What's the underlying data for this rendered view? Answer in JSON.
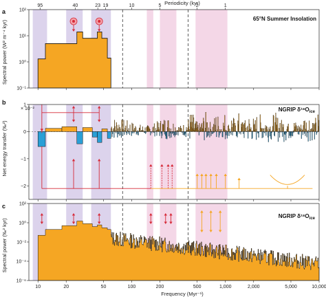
{
  "chart_data": {
    "type": "area",
    "x_axis": {
      "label": "Frequency (Myr⁻¹)",
      "scale": "log",
      "range": [
        8,
        10000
      ],
      "tick_labels": [
        "10",
        "20",
        "50",
        "100",
        "200",
        "500",
        "1,000",
        "2,000",
        "5,000",
        "10,000"
      ],
      "tick_values": [
        10,
        20,
        50,
        100,
        200,
        500,
        1000,
        2000,
        5000,
        10000
      ]
    },
    "top_axis": {
      "label": "Periodicity (kyr)",
      "tick_labels": [
        "95",
        "40",
        "23",
        "19",
        "10",
        "5",
        "2",
        "1"
      ],
      "tick_values": [
        95,
        40,
        23,
        19,
        10,
        5,
        2,
        1
      ]
    },
    "highlight_bands": [
      {
        "from": 8.8,
        "to": 12.5,
        "color": "#dcd3ec"
      },
      {
        "from": 20,
        "to": 30,
        "color": "#dcd3ec"
      },
      {
        "from": 37,
        "to": 60,
        "color": "#dcd3ec"
      },
      {
        "from": 145,
        "to": 170,
        "color": "#f4d7e7"
      },
      {
        "from": 200,
        "to": 300,
        "color": "#f4d7e7"
      },
      {
        "from": 480,
        "to": 1050,
        "color": "#f4d7e7"
      }
    ],
    "dashed_lines": [
      80,
      400
    ],
    "panels": [
      {
        "letter": "a",
        "title": "65°N Summer Insolation",
        "ylabel": "Spectral power (W² m⁻⁴ kyr)",
        "yscale": "log",
        "ylim": [
          0.1,
          100
        ],
        "ytick_labels": [
          "10⁻¹",
          "10⁰",
          "10¹",
          "10²"
        ],
        "ytick_values": [
          0.1,
          1,
          10,
          100
        ],
        "step_edges": [
          10,
          12,
          18,
          26,
          30,
          38,
          43,
          48,
          55,
          60
        ],
        "step_values": [
          1.3,
          5,
          5,
          14,
          8,
          8,
          14,
          8,
          1.4
        ]
      },
      {
        "letter": "b",
        "title": "NGRIP δ¹⁸O",
        "title_sub": "ice",
        "ylabel": "Net energy transfer (‰²)",
        "yscale": "linear",
        "ylim": [
          -2.5,
          1.0
        ],
        "ytick_labels": [
          "1",
          "0",
          "−1",
          "−2"
        ],
        "ytick_values": [
          1,
          0,
          -1,
          -2
        ],
        "scale_note": "× 10⁻²",
        "step_edges": [
          10,
          12,
          18,
          26,
          30,
          38,
          43,
          48,
          55,
          60
        ],
        "step_values": [
          -0.55,
          0.12,
          0.18,
          -0.45,
          0.15,
          -0.2,
          -0.4,
          0.1,
          -0.25
        ],
        "arrow_y_levels": [
          1.2,
          0.9,
          -2.1
        ]
      },
      {
        "letter": "c",
        "title": "NGRIP δ¹⁸O",
        "title_sub": "ice",
        "ylabel": "Spectral power (‰² kyr)",
        "yscale": "log",
        "ylim": [
          1e-06,
          100
        ],
        "ytick_labels": [
          "10⁻⁶",
          "10⁻⁴",
          "10⁻²",
          "10⁰",
          "10²"
        ],
        "ytick_values": [
          1e-06,
          0.0001,
          0.01,
          1,
          100
        ],
        "step_edges": [
          10,
          12,
          18,
          26,
          30,
          38,
          43,
          48,
          55,
          60
        ],
        "step_values": [
          0.05,
          0.2,
          0.5,
          1.5,
          0.8,
          0.4,
          0.6,
          0.3,
          0.2
        ]
      }
    ],
    "colors": {
      "fill": "#f5a623",
      "negative_fill": "#2a9fd6",
      "line": "#111111",
      "red": "#d62a38",
      "orange": "#f5a623",
      "dashed": "#333333"
    }
  }
}
